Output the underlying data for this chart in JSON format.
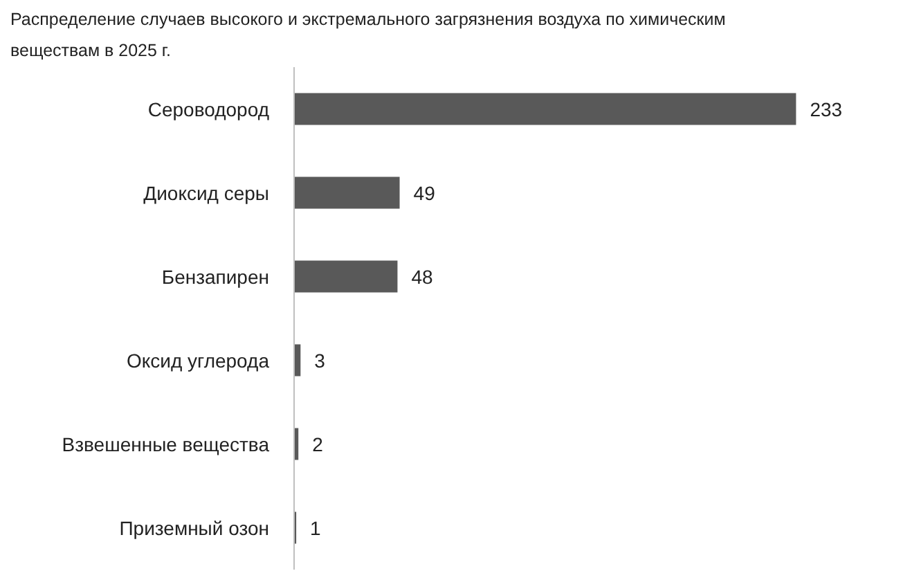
{
  "chart_data": {
    "type": "bar",
    "orientation": "horizontal",
    "title": "Распределение случаев высокого и экстремального загрязнения воздуха по химическим веществам в 2025 г.",
    "categories": [
      "Сероводород",
      "Диоксид серы",
      "Бензапирен",
      "Оксид углерода",
      "Взвешенные вещества",
      "Приземный озон"
    ],
    "values": [
      233,
      49,
      48,
      3,
      2,
      1
    ],
    "color": "#595959",
    "data_labels": true,
    "grid": false
  }
}
